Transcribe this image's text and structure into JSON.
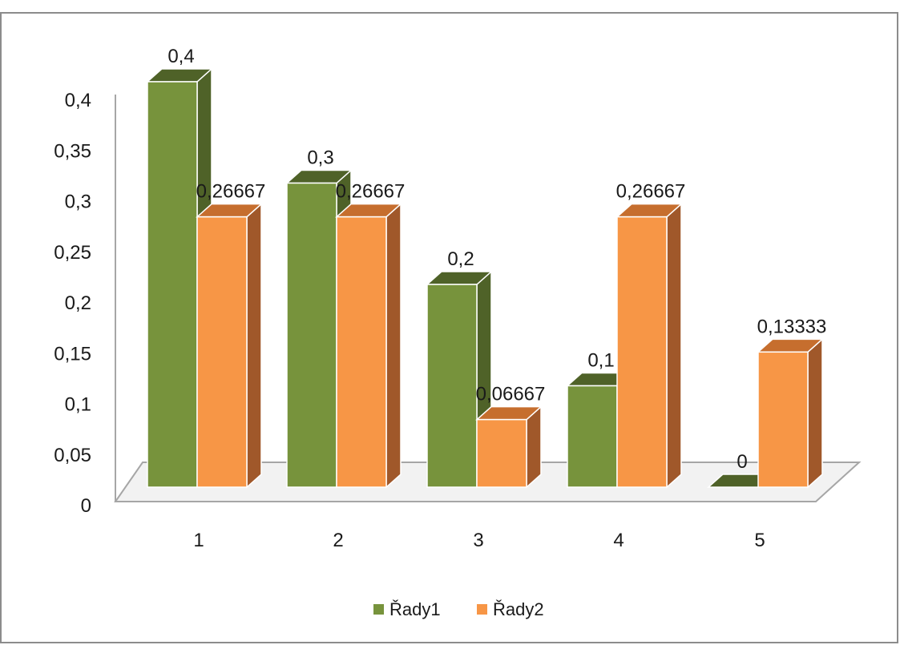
{
  "chart_data": {
    "type": "bar",
    "categories": [
      "1",
      "2",
      "3",
      "4",
      "5"
    ],
    "series": [
      {
        "name": "Řady1",
        "values": [
          0.4,
          0.3,
          0.2,
          0.1,
          0
        ],
        "labels": [
          "0,4",
          "0,3",
          "0,2",
          "0,1",
          "0"
        ],
        "color": "#77933C",
        "side_color": "#4F6228",
        "top_color": "#4F6228"
      },
      {
        "name": "Řady2",
        "values": [
          0.26667,
          0.26667,
          0.06667,
          0.26667,
          0.13333
        ],
        "labels": [
          "0,26667",
          "0,26667",
          "0,06667",
          "0,26667",
          "0,13333"
        ],
        "color": "#F79646",
        "side_color": "#A0582A",
        "top_color": "#C66E2E"
      }
    ],
    "y_ticks": [
      0,
      0.05,
      0.1,
      0.15,
      0.2,
      0.25,
      0.3,
      0.35,
      0.4
    ],
    "y_tick_labels": [
      "0",
      "0,05",
      "0,1",
      "0,15",
      "0,2",
      "0,25",
      "0,3",
      "0,35",
      "0,4"
    ],
    "ylim": [
      0,
      0.4
    ],
    "title": "",
    "xlabel": "",
    "ylabel": "",
    "grid": false,
    "legend_position": "bottom",
    "three_d": true
  }
}
